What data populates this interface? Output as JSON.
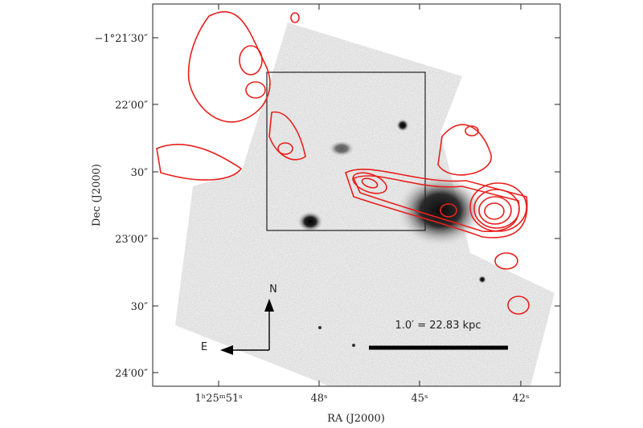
{
  "axes": {
    "xlabel": "RA (J2000)",
    "ylabel": "Dec (J2000)",
    "xticks": [
      "1ʰ25ᵐ51ˢ",
      "48ˢ",
      "45ˢ",
      "42ˢ"
    ],
    "yticks": [
      "−1°21′30″",
      "22′00″",
      "30″",
      "23′00″",
      "30″",
      "24′00″"
    ]
  },
  "annotations": {
    "scale_bar": "1.0′ = 22.83 kpc",
    "north": "N",
    "east": "E"
  }
}
